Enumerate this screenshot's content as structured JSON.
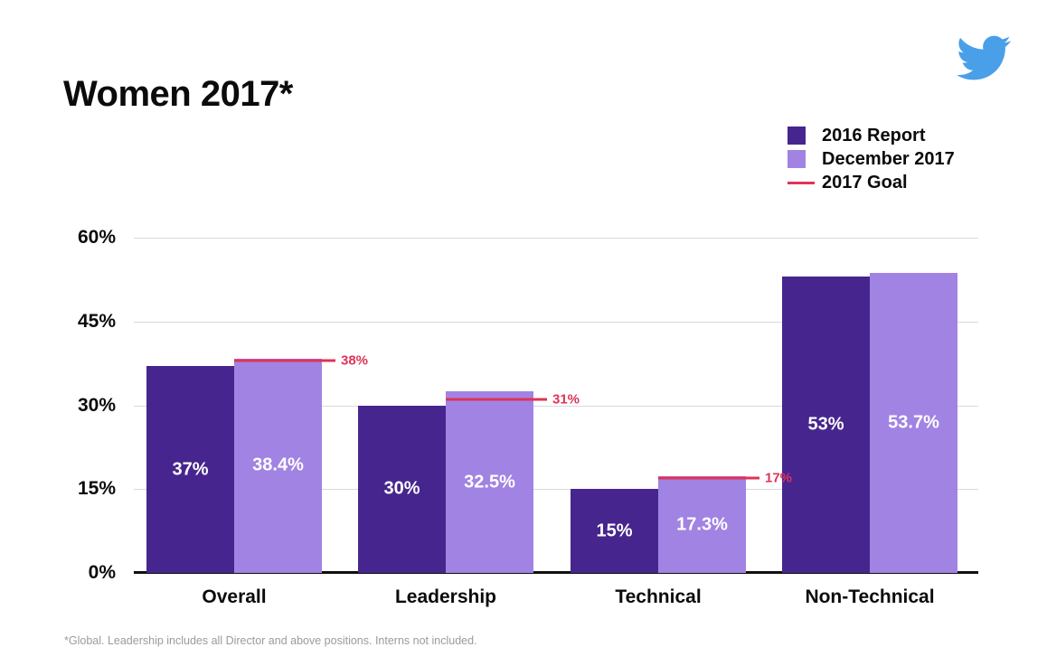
{
  "title": "Women 2017*",
  "footnote": "*Global. Leadership includes all Director and above positions. Interns not included.",
  "logo": {
    "icon": "twitter-bird-icon",
    "color": "#4A9FE9"
  },
  "legend": {
    "items": [
      {
        "label": "2016 Report",
        "swatch": "square",
        "color": "#46268E"
      },
      {
        "label": "December 2017",
        "swatch": "square",
        "color": "#A183E3"
      },
      {
        "label": "2017 Goal",
        "swatch": "line",
        "color": "#DE3456"
      }
    ]
  },
  "chart_data": {
    "type": "bar",
    "title": "Women 2017*",
    "categories": [
      "Overall",
      "Leadership",
      "Technical",
      "Non-Technical"
    ],
    "series": [
      {
        "name": "2016 Report",
        "color": "#46268E",
        "values": [
          37,
          30,
          15,
          53
        ],
        "labels": [
          "37%",
          "30%",
          "15%",
          "53%"
        ]
      },
      {
        "name": "December 2017",
        "color": "#A183E3",
        "values": [
          38.4,
          32.5,
          17.3,
          53.7
        ],
        "labels": [
          "38.4%",
          "32.5%",
          "17.3%",
          "53.7%"
        ]
      }
    ],
    "goal_series": {
      "name": "2017 Goal",
      "color": "#DE3456",
      "values": [
        38,
        31,
        17,
        null
      ],
      "labels": [
        "38%",
        "31%",
        "17%",
        null
      ]
    },
    "y_axis": {
      "min": 0,
      "max": 60,
      "ticks": [
        0,
        15,
        30,
        45,
        60
      ],
      "tick_labels": [
        "0%",
        "15%",
        "30%",
        "45%",
        "60%"
      ]
    },
    "grid": true,
    "legend_position": "top-right",
    "value_labels": "inside-center-white"
  }
}
